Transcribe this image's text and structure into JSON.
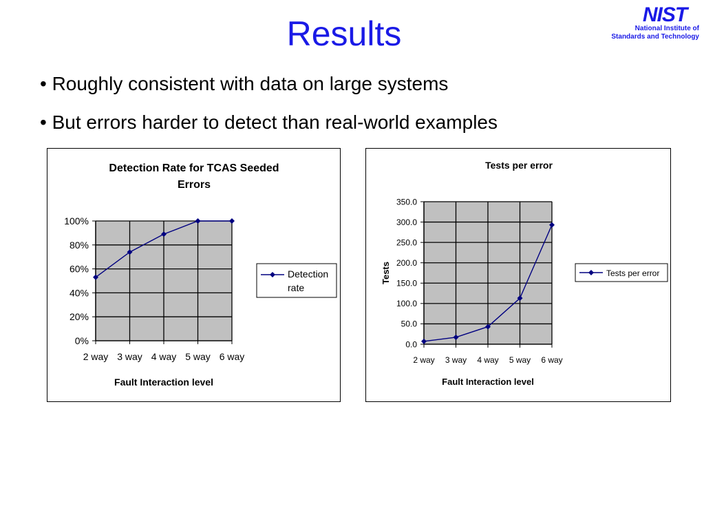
{
  "slide": {
    "title": "Results",
    "bullets": [
      "• Roughly consistent with data on large systems",
      "• But errors harder to detect than real-world examples"
    ],
    "logo": {
      "mark": "NIST",
      "line1": "National Institute of",
      "line2": "Standards and Technology"
    }
  },
  "chart_data": [
    {
      "type": "line",
      "title_lines": [
        "Detection Rate for TCAS Seeded",
        "Errors"
      ],
      "categories": [
        "2 way",
        "3 way",
        "4 way",
        "5 way",
        "6 way"
      ],
      "series": [
        {
          "name": "Detection rate",
          "name_lines": [
            "Detection",
            "rate"
          ],
          "values": [
            0.53,
            0.74,
            0.89,
            1.0,
            1.0
          ]
        }
      ],
      "xlabel": "Fault Interaction level",
      "ylabel": "",
      "ylim": [
        0,
        1
      ],
      "yticks": [
        "0%",
        "20%",
        "40%",
        "60%",
        "80%",
        "100%"
      ],
      "grid": true,
      "legend_position": "right",
      "colors": {
        "line": "#000080",
        "plot_bg": "#c0c0c0"
      }
    },
    {
      "type": "line",
      "title_lines": [
        "Tests per error"
      ],
      "categories": [
        "2 way",
        "3 way",
        "4 way",
        "5 way",
        "6 way"
      ],
      "series": [
        {
          "name": "Tests per error",
          "name_lines": [
            "Tests per error"
          ],
          "values": [
            7,
            17,
            43,
            113,
            293
          ]
        }
      ],
      "xlabel": "Fault Interaction level",
      "ylabel": "Tests",
      "ylim": [
        0,
        350
      ],
      "yticks": [
        "0.0",
        "50.0",
        "100.0",
        "150.0",
        "200.0",
        "250.0",
        "300.0",
        "350.0"
      ],
      "grid": true,
      "legend_position": "right",
      "colors": {
        "line": "#000080",
        "plot_bg": "#c0c0c0"
      }
    }
  ]
}
